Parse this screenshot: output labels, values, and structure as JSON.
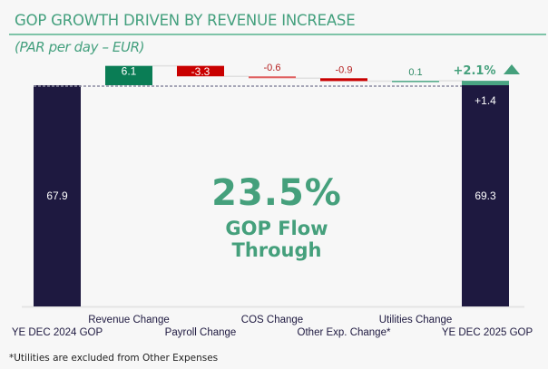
{
  "header": {
    "title": "GOP GROWTH DRIVEN BY REVENUE INCREASE",
    "subtitle": "(PAR per day – EUR)"
  },
  "kpi": {
    "value": "23.5%",
    "label": "GOP Flow Through"
  },
  "growth_badge": {
    "label": "+2.1%",
    "icon": "triangle-up-icon"
  },
  "footnote": "*Utilities are excluded from Other Expenses",
  "colors": {
    "total": "#1e1940",
    "increase": "#0a7d55",
    "decrease": "#c90000",
    "light_decrease": "#e06060",
    "light_increase": "#4aa583",
    "accent": "#45a07c"
  },
  "chart_data": {
    "type": "waterfall",
    "title": "GOP GROWTH DRIVEN BY REVENUE INCREASE",
    "subtitle": "(PAR per day – EUR)",
    "categories": [
      "YE DEC 2024 GOP",
      "Revenue Change",
      "Payroll Change",
      "COS Change",
      "Other Exp. Change*",
      "Utilities Change",
      "YE DEC 2025 GOP"
    ],
    "values": [
      67.9,
      6.1,
      -3.3,
      -0.6,
      -0.9,
      0.1,
      69.3
    ],
    "labels": [
      "67.9",
      "6.1",
      "-3.3",
      "-0.6",
      "-0.9",
      "0.1",
      "69.3"
    ],
    "kinds": [
      "total",
      "increase",
      "decrease",
      "decrease",
      "decrease",
      "increase",
      "total"
    ],
    "total_change_label": "+1.4",
    "total_change_value": 1.4,
    "growth_pct_label": "+2.1%",
    "reference_line": 67.9,
    "grid": false,
    "xlabel": "",
    "ylabel": ""
  }
}
